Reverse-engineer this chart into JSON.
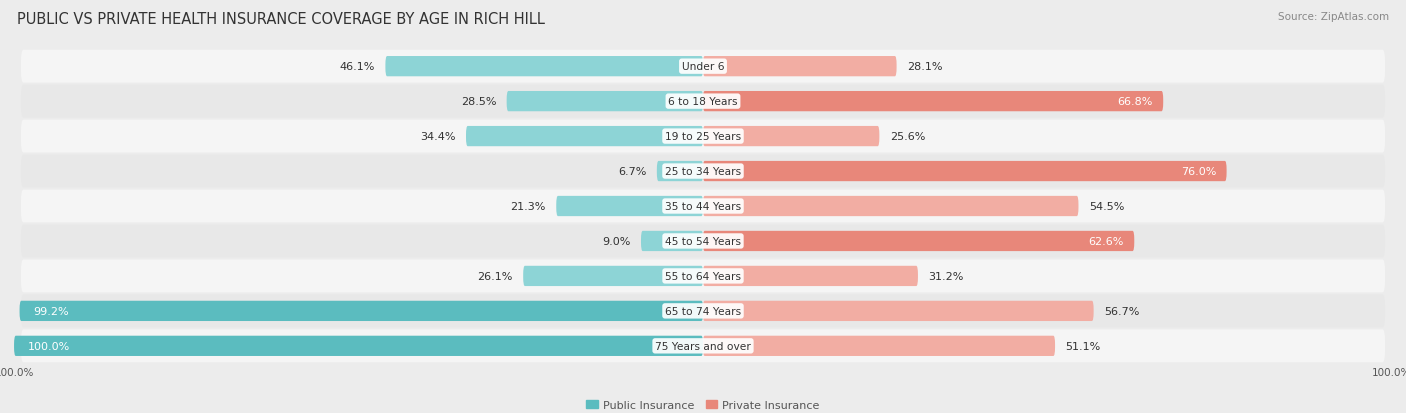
{
  "title": "PUBLIC VS PRIVATE HEALTH INSURANCE COVERAGE BY AGE IN RICH HILL",
  "source": "Source: ZipAtlas.com",
  "categories": [
    "Under 6",
    "6 to 18 Years",
    "19 to 25 Years",
    "25 to 34 Years",
    "35 to 44 Years",
    "45 to 54 Years",
    "55 to 64 Years",
    "65 to 74 Years",
    "75 Years and over"
  ],
  "public_values": [
    46.1,
    28.5,
    34.4,
    6.7,
    21.3,
    9.0,
    26.1,
    99.2,
    100.0
  ],
  "private_values": [
    28.1,
    66.8,
    25.6,
    76.0,
    54.5,
    62.6,
    31.2,
    56.7,
    51.1
  ],
  "public_color": "#5bbcbf",
  "private_color": "#e8877a",
  "public_color_light": "#8dd4d6",
  "private_color_light": "#f2ada3",
  "bg_color": "#ececec",
  "row_bg_color": "#f5f5f5",
  "row_alt_bg_color": "#e8e8e8",
  "max_value": 100.0,
  "bar_height": 0.58,
  "title_fontsize": 10.5,
  "label_fontsize": 8.0,
  "tick_fontsize": 7.5,
  "legend_fontsize": 8.0,
  "source_fontsize": 7.5
}
